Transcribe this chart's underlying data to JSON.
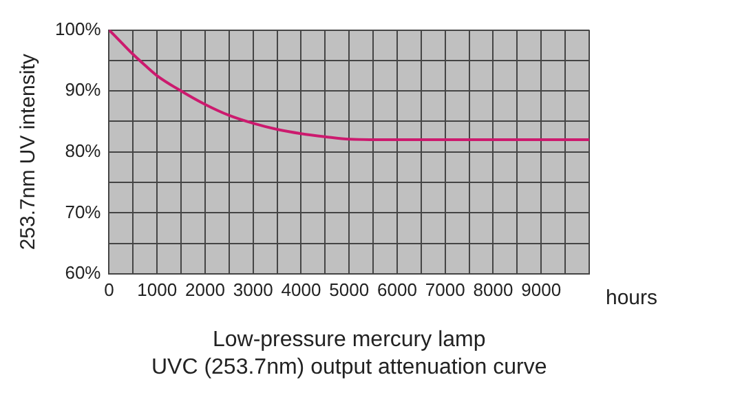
{
  "chart_data": {
    "type": "line",
    "title": "Low-pressure mercury lamp",
    "subtitle": "UVC (253.7nm) output attenuation curve",
    "xlabel": "hours",
    "ylabel": "253.7nm UV intensity",
    "x": [
      0,
      250,
      500,
      750,
      1000,
      1500,
      2000,
      2500,
      3000,
      3500,
      4000,
      4500,
      5000,
      6000,
      7000,
      8000,
      9000,
      10000
    ],
    "series": [
      {
        "color": "#cc1a6e",
        "values": [
          100,
          98,
          96,
          94.2,
          92.5,
          90,
          87.8,
          86,
          84.7,
          83.7,
          83,
          82.5,
          82.1,
          82,
          82,
          82,
          82,
          82
        ]
      }
    ],
    "xlim": [
      0,
      10000
    ],
    "xticks": [
      0,
      {
        "value": 500,
        "label": null
      },
      1000,
      {
        "value": 1500,
        "label": null
      },
      2000,
      {
        "value": 2500,
        "label": null
      },
      3000,
      {
        "value": 3500,
        "label": null
      },
      4000,
      {
        "value": 4500,
        "label": null
      },
      5000,
      {
        "value": 5500,
        "label": null
      },
      6000,
      {
        "value": 6500,
        "label": null
      },
      7000,
      {
        "value": 7500,
        "label": null
      },
      8000,
      {
        "value": 8500,
        "label": null
      },
      9000,
      {
        "value": 9500,
        "label": null
      },
      {
        "value": 10000,
        "label": null
      }
    ],
    "ylim": [
      60,
      100
    ],
    "yticks": [
      {
        "value": 60,
        "label": "60%"
      },
      {
        "value": 65,
        "label": null
      },
      {
        "value": 70,
        "label": "70%"
      },
      {
        "value": 75,
        "label": null
      },
      {
        "value": 80,
        "label": "80%"
      },
      {
        "value": 85,
        "label": null
      },
      {
        "value": 90,
        "label": "90%"
      },
      {
        "value": 95,
        "label": null
      },
      {
        "value": 100,
        "label": "100%"
      }
    ],
    "grid": true,
    "legend": false,
    "marker": "none",
    "line_style": "solid"
  }
}
